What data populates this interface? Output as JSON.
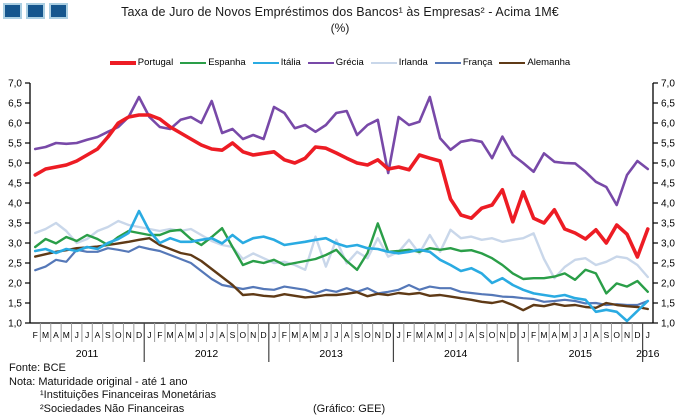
{
  "header": {
    "title_line1": "Taxa de Juro de Novos Empréstimos dos Bancos¹ às Empresas² - Acima 1M€",
    "title_line2": "(%)"
  },
  "logo": {
    "square_fill": "#15568e",
    "square_border": "#abcfe2",
    "square_count": 3
  },
  "footer": {
    "fonte": "Fonte: BCE",
    "nota": "Nota: Maturidade original - até 1 ano",
    "nota1": "¹Instituições Financeiras Monetárias",
    "nota2": "²Sociedades Não Financeiras",
    "credit": "(Gráfico: GEE)"
  },
  "chart_data": {
    "type": "line",
    "title": "Taxa de Juro de Novos Empréstimos dos Bancos às Empresas - Acima 1M€ (%)",
    "ylabel": "",
    "ylim": [
      1.0,
      7.0
    ],
    "ytick_step": 0.5,
    "decimal_separator": ",",
    "grid": false,
    "legend_position": "top-center",
    "axis_color": "#000000",
    "month_separator_color": "#9a9a9a",
    "year_separator_color": "#444444",
    "x_months": [
      "F",
      "M",
      "A",
      "M",
      "J",
      "J",
      "A",
      "S",
      "O",
      "N",
      "D",
      "J",
      "F",
      "M",
      "A",
      "M",
      "J",
      "J",
      "A",
      "S",
      "O",
      "N",
      "D",
      "J",
      "F",
      "M",
      "A",
      "M",
      "J",
      "J",
      "A",
      "S",
      "O",
      "N",
      "D",
      "J",
      "F",
      "M",
      "A",
      "M",
      "J",
      "J",
      "A",
      "S",
      "O",
      "N",
      "D",
      "J",
      "F",
      "M",
      "A",
      "M",
      "J",
      "J",
      "A",
      "S",
      "O",
      "N",
      "D",
      "J"
    ],
    "years": [
      {
        "label": "2011",
        "months": 11
      },
      {
        "label": "2012",
        "months": 12
      },
      {
        "label": "2013",
        "months": 12
      },
      {
        "label": "2014",
        "months": 12
      },
      {
        "label": "2015",
        "months": 12
      },
      {
        "label": "2016",
        "months": 1
      }
    ],
    "draw_order": [
      "Irlanda",
      "França",
      "Alemanha",
      "Espanha",
      "Itália",
      "Grécia",
      "Portugal"
    ],
    "series": [
      {
        "name": "Portugal",
        "color": "#ed1c24",
        "width": 3.6,
        "values": [
          4.7,
          4.85,
          4.9,
          4.95,
          5.05,
          5.2,
          5.35,
          5.65,
          6.0,
          6.15,
          6.2,
          6.2,
          6.1,
          5.9,
          5.75,
          5.6,
          5.45,
          5.35,
          5.32,
          5.5,
          5.28,
          5.2,
          5.24,
          5.28,
          5.08,
          5.0,
          5.12,
          5.4,
          5.37,
          5.25,
          5.12,
          5.0,
          4.95,
          5.08,
          4.85,
          4.9,
          4.83,
          5.2,
          5.12,
          5.05,
          4.1,
          3.7,
          3.62,
          3.87,
          3.95,
          4.33,
          3.53,
          4.28,
          3.62,
          3.5,
          3.83,
          3.35,
          3.25,
          3.1,
          3.33,
          3.0,
          3.45,
          3.22,
          2.65,
          3.35
        ]
      },
      {
        "name": "Espanha",
        "color": "#2a9e48",
        "width": 2.4,
        "values": [
          2.9,
          3.1,
          2.99,
          3.15,
          3.05,
          3.2,
          3.1,
          2.95,
          3.15,
          3.3,
          3.25,
          3.2,
          3.2,
          3.3,
          3.33,
          3.1,
          2.95,
          3.15,
          3.37,
          2.9,
          2.45,
          2.55,
          2.5,
          2.58,
          2.45,
          2.5,
          2.55,
          2.6,
          2.7,
          2.83,
          2.55,
          2.33,
          2.75,
          3.49,
          2.78,
          2.8,
          2.83,
          2.78,
          2.87,
          2.83,
          2.87,
          2.8,
          2.82,
          2.74,
          2.62,
          2.45,
          2.24,
          2.1,
          2.12,
          2.12,
          2.16,
          2.24,
          2.08,
          2.33,
          2.24,
          1.74,
          1.99,
          1.91,
          2.05,
          1.78
        ]
      },
      {
        "name": "Itália",
        "color": "#2aabe2",
        "width": 2.6,
        "values": [
          2.8,
          2.85,
          2.75,
          2.85,
          2.8,
          2.9,
          2.85,
          3.0,
          3.1,
          3.25,
          3.8,
          3.3,
          3.0,
          3.12,
          3.03,
          3.03,
          3.08,
          3.12,
          2.99,
          3.2,
          3.0,
          3.12,
          3.16,
          3.08,
          2.95,
          2.99,
          3.03,
          3.08,
          3.12,
          2.99,
          2.91,
          2.95,
          2.87,
          2.85,
          2.78,
          2.74,
          2.78,
          2.83,
          2.78,
          2.58,
          2.45,
          2.3,
          2.37,
          2.24,
          2.0,
          2.12,
          1.95,
          1.83,
          1.74,
          1.7,
          1.66,
          1.7,
          1.62,
          1.58,
          1.28,
          1.33,
          1.28,
          1.05,
          1.3,
          1.55
        ]
      },
      {
        "name": "Grécia",
        "color": "#7849a8",
        "width": 2.6,
        "values": [
          5.35,
          5.4,
          5.5,
          5.48,
          5.5,
          5.58,
          5.65,
          5.78,
          5.9,
          6.15,
          6.65,
          6.15,
          5.9,
          5.85,
          6.08,
          6.15,
          6.0,
          6.55,
          5.75,
          5.85,
          5.6,
          5.7,
          5.6,
          6.4,
          6.25,
          5.87,
          5.95,
          5.78,
          5.95,
          6.25,
          6.3,
          5.7,
          5.95,
          6.08,
          4.75,
          6.15,
          5.95,
          6.03,
          6.65,
          5.62,
          5.33,
          5.53,
          5.58,
          5.53,
          5.12,
          5.66,
          5.2,
          5.0,
          4.78,
          5.24,
          5.03,
          5.0,
          4.99,
          4.78,
          4.53,
          4.4,
          3.95,
          4.7,
          5.05,
          4.85
        ]
      },
      {
        "name": "Irlanda",
        "color": "#c9d7ea",
        "width": 2.4,
        "values": [
          3.25,
          3.35,
          3.5,
          3.3,
          3.0,
          3.1,
          3.3,
          3.4,
          3.55,
          3.45,
          3.4,
          3.35,
          3.3,
          3.35,
          3.3,
          3.35,
          3.2,
          3.05,
          2.95,
          2.9,
          2.6,
          2.74,
          2.62,
          2.5,
          2.53,
          2.45,
          2.33,
          3.16,
          2.41,
          3.08,
          2.49,
          2.78,
          2.62,
          3.12,
          2.66,
          2.78,
          3.08,
          2.74,
          3.2,
          2.78,
          3.33,
          3.12,
          3.16,
          3.08,
          3.12,
          3.03,
          3.08,
          3.12,
          3.24,
          2.6,
          2.12,
          2.4,
          2.58,
          2.62,
          2.45,
          2.53,
          2.66,
          2.62,
          2.45,
          2.15
        ]
      },
      {
        "name": "França",
        "color": "#5578b8",
        "width": 2.2,
        "values": [
          2.32,
          2.41,
          2.58,
          2.53,
          2.83,
          2.78,
          2.78,
          2.87,
          2.83,
          2.78,
          2.91,
          2.85,
          2.8,
          2.7,
          2.6,
          2.5,
          2.3,
          2.1,
          1.95,
          1.9,
          1.85,
          1.9,
          1.85,
          1.83,
          1.91,
          1.87,
          1.83,
          1.74,
          1.83,
          1.78,
          1.87,
          1.78,
          1.87,
          1.74,
          1.78,
          1.83,
          1.95,
          1.83,
          1.91,
          1.87,
          1.87,
          1.78,
          1.75,
          1.72,
          1.7,
          1.66,
          1.65,
          1.62,
          1.6,
          1.53,
          1.55,
          1.58,
          1.55,
          1.49,
          1.5,
          1.45,
          1.47,
          1.45,
          1.45,
          1.55
        ]
      },
      {
        "name": "Alemanha",
        "color": "#5f3a16",
        "width": 2.4,
        "values": [
          2.66,
          2.72,
          2.78,
          2.82,
          2.87,
          2.89,
          2.91,
          2.95,
          2.99,
          3.03,
          3.08,
          3.12,
          2.95,
          2.85,
          2.75,
          2.7,
          2.55,
          2.35,
          2.15,
          1.95,
          1.7,
          1.72,
          1.68,
          1.66,
          1.72,
          1.68,
          1.64,
          1.66,
          1.7,
          1.7,
          1.73,
          1.77,
          1.67,
          1.73,
          1.7,
          1.75,
          1.72,
          1.75,
          1.68,
          1.7,
          1.66,
          1.62,
          1.58,
          1.53,
          1.5,
          1.55,
          1.45,
          1.32,
          1.45,
          1.42,
          1.48,
          1.43,
          1.45,
          1.4,
          1.38,
          1.5,
          1.45,
          1.42,
          1.4,
          1.35
        ]
      }
    ]
  }
}
